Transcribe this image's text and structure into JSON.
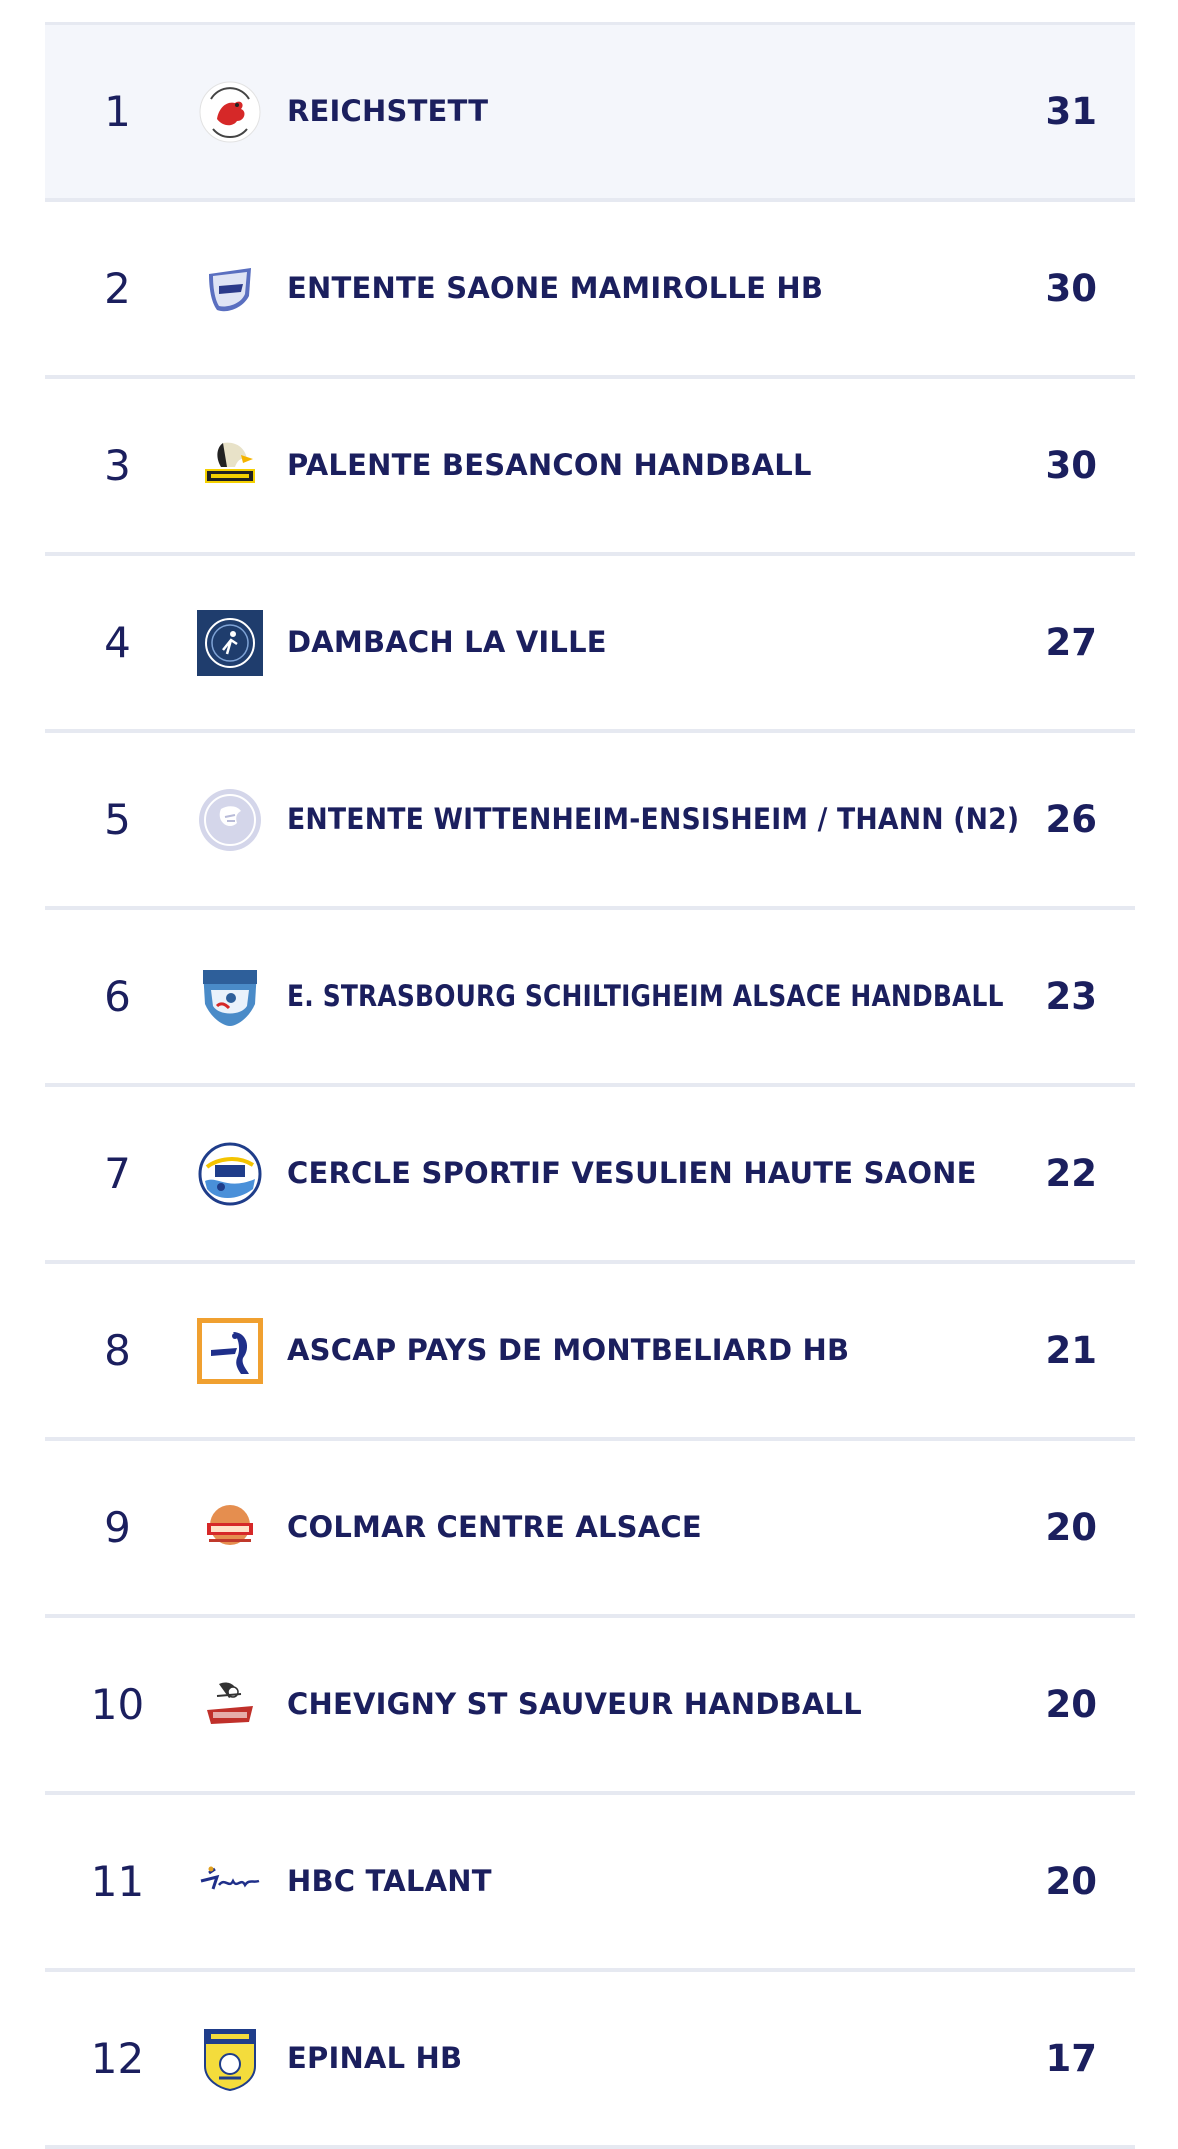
{
  "standings": [
    {
      "rank": "1",
      "team": "REICHSTETT",
      "points": "31",
      "logo_icon": "reichstett-logo-icon"
    },
    {
      "rank": "2",
      "team": "ENTENTE SAONE MAMIROLLE HB",
      "points": "30",
      "logo_icon": "esm-logo-icon"
    },
    {
      "rank": "3",
      "team": "PALENTE BESANCON HANDBALL",
      "points": "30",
      "logo_icon": "palente-logo-icon"
    },
    {
      "rank": "4",
      "team": "DAMBACH LA VILLE",
      "points": "27",
      "logo_icon": "dambach-logo-icon"
    },
    {
      "rank": "5",
      "team": "ENTENTE WITTENHEIM-ENSISHEIM / THANN (N2)",
      "points": "26",
      "logo_icon": "handball-generic-logo-icon"
    },
    {
      "rank": "6",
      "team": "E. STRASBOURG SCHILTIGHEIM ALSACE HANDBALL",
      "points": "23",
      "logo_icon": "esshb-logo-icon"
    },
    {
      "rank": "7",
      "team": "CERCLE SPORTIF VESULIEN HAUTE SAONE",
      "points": "22",
      "logo_icon": "csv-logo-icon"
    },
    {
      "rank": "8",
      "team": "ASCAP PAYS DE MONTBELIARD HB",
      "points": "21",
      "logo_icon": "ascap-logo-icon"
    },
    {
      "rank": "9",
      "team": "COLMAR CENTRE ALSACE",
      "points": "20",
      "logo_icon": "cca-logo-icon"
    },
    {
      "rank": "10",
      "team": "CHEVIGNY ST SAUVEUR HANDBALL",
      "points": "20",
      "logo_icon": "cssh-logo-icon"
    },
    {
      "rank": "11",
      "team": "HBC TALANT",
      "points": "20",
      "logo_icon": "talant-logo-icon"
    },
    {
      "rank": "12",
      "team": "EPINAL HB",
      "points": "17",
      "logo_icon": "epinal-logo-icon"
    }
  ],
  "colors": {
    "text": "#1b1f5e",
    "divider": "#e6e9f1",
    "highlight_row": "#f4f6fb"
  }
}
